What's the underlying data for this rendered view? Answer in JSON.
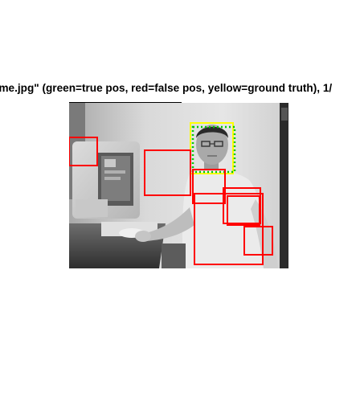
{
  "figure": {
    "title": "\"me.jpg\" (green=true pos, red=false pos, yellow=ground truth), 1/"
  },
  "photo": {
    "description_name": "grayscale-photo-of-man-at-desk",
    "tone": "grayscale"
  },
  "legend_colors": {
    "true_pos": "#00c800",
    "false_pos": "#ff0000",
    "ground_truth": "#ffff00"
  },
  "detections": {
    "true_positive_count": 1,
    "false_positive_count": 7,
    "ground_truth_count": 1
  }
}
